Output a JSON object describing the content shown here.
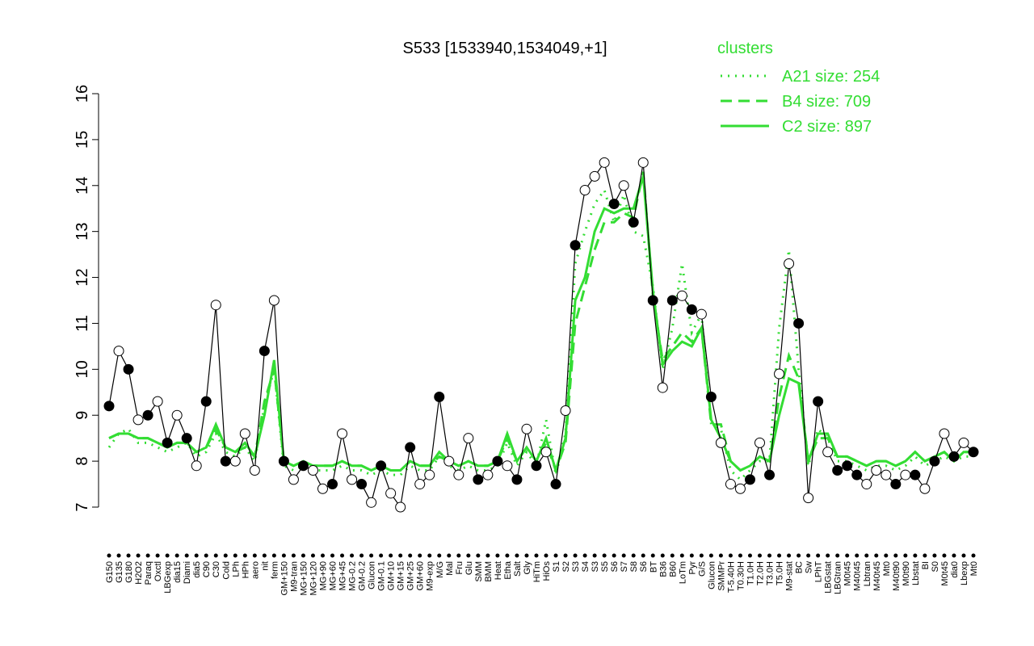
{
  "chart_data": {
    "type": "line",
    "title": "S533 [1533940,1534049,+1]",
    "ylim": [
      7,
      16
    ],
    "yticks": [
      7,
      8,
      9,
      10,
      11,
      12,
      13,
      14,
      15,
      16
    ],
    "legend_title": "clusters",
    "legend_position": "top-right",
    "categories": [
      "G150",
      "G135",
      "G180",
      "H2O2",
      "Paraq",
      "Oxctl",
      "LBGexp",
      "dia15",
      "Diami",
      "dia5",
      "C90",
      "C30",
      "Cold",
      "LPh",
      "HPh",
      "aero",
      "nit",
      "ferm",
      "GM+150",
      "M9-tran",
      "MG+150",
      "MG+120",
      "MG+90",
      "MG+60",
      "MG+45",
      "MG-0.2",
      "GM-0.2",
      "Glucon",
      "GM-0.1",
      "GM+10",
      "GM+15",
      "GM+25",
      "GM+60",
      "M9-exp",
      "M/G",
      "Mal",
      "Fru",
      "Glu",
      "SMM",
      "BMM",
      "Heat",
      "Etha",
      "Salt",
      "Gly",
      "HiTm",
      "HiOs",
      "S1",
      "S2",
      "S3",
      "S4",
      "S3",
      "S5",
      "S6",
      "S7",
      "S8",
      "S6",
      "BT",
      "B36",
      "B60",
      "LoTm",
      "Pyr",
      "G/S",
      "Glucon",
      "SMMPr",
      "T-5.40H",
      "T0.30H",
      "T1.0H",
      "T2.0H",
      "T3.0H",
      "T5.0H",
      "M9-stat",
      "BC",
      "Sw",
      "LPhT",
      "LBGstat",
      "LBGtran",
      "M0t45",
      "M40t45",
      "Lbtran",
      "M40t45",
      "Mt0",
      "M40t90",
      "M0t90",
      "Lbstat",
      "BI",
      "S0",
      "M0t45",
      "dia0",
      "Lbexp",
      "Mt0"
    ],
    "values": [
      9.2,
      10.4,
      10.0,
      8.9,
      9.0,
      9.3,
      8.4,
      9.0,
      8.5,
      7.9,
      9.3,
      11.4,
      8.0,
      8.0,
      8.6,
      7.8,
      10.4,
      11.5,
      8.0,
      7.6,
      7.9,
      7.8,
      7.4,
      7.5,
      8.6,
      7.6,
      7.5,
      7.1,
      7.9,
      7.3,
      7.0,
      8.3,
      7.5,
      7.7,
      9.4,
      8.0,
      7.7,
      8.5,
      7.6,
      7.7,
      8.0,
      7.9,
      7.6,
      8.7,
      7.9,
      8.2,
      7.5,
      9.1,
      12.7,
      13.9,
      14.2,
      14.5,
      13.6,
      14.0,
      13.2,
      14.5,
      11.5,
      9.6,
      11.5,
      11.6,
      11.3,
      11.2,
      9.4,
      8.4,
      7.5,
      7.4,
      7.6,
      8.4,
      7.7,
      9.9,
      12.3,
      11.0,
      7.2,
      9.3,
      8.2,
      7.8,
      7.9,
      7.7,
      7.5,
      7.8,
      7.7,
      7.5,
      7.7,
      7.7,
      7.4,
      8.0,
      8.6,
      8.1,
      8.4,
      8.2
    ],
    "marker_colors": [
      "#000000",
      "#ffffff",
      "#000000",
      "#ffffff",
      "#000000",
      "#ffffff",
      "#000000",
      "#ffffff",
      "#000000",
      "#ffffff",
      "#000000",
      "#ffffff",
      "#000000",
      "#ffffff",
      "#ffffff",
      "#ffffff",
      "#000000",
      "#ffffff",
      "#000000",
      "#ffffff",
      "#000000",
      "#ffffff",
      "#ffffff",
      "#000000",
      "#ffffff",
      "#ffffff",
      "#000000",
      "#ffffff",
      "#000000",
      "#ffffff",
      "#ffffff",
      "#000000",
      "#ffffff",
      "#ffffff",
      "#000000",
      "#ffffff",
      "#ffffff",
      "#ffffff",
      "#000000",
      "#ffffff",
      "#000000",
      "#ffffff",
      "#000000",
      "#ffffff",
      "#000000",
      "#ffffff",
      "#000000",
      "#ffffff",
      "#000000",
      "#ffffff",
      "#ffffff",
      "#ffffff",
      "#000000",
      "#ffffff",
      "#000000",
      "#ffffff",
      "#000000",
      "#ffffff",
      "#000000",
      "#ffffff",
      "#000000",
      "#ffffff",
      "#000000",
      "#ffffff",
      "#ffffff",
      "#ffffff",
      "#000000",
      "#ffffff",
      "#000000",
      "#ffffff",
      "#ffffff",
      "#000000",
      "#ffffff",
      "#000000",
      "#ffffff",
      "#000000",
      "#000000",
      "#000000",
      "#ffffff",
      "#ffffff",
      "#ffffff",
      "#000000",
      "#ffffff",
      "#000000",
      "#ffffff",
      "#000000",
      "#ffffff",
      "#000000",
      "#ffffff",
      "#000000"
    ],
    "series": [
      {
        "name": "A21 size: 254",
        "color": "#33dd33",
        "dash": "dotted",
        "values": [
          8.3,
          8.6,
          8.7,
          8.4,
          8.4,
          8.3,
          8.2,
          8.3,
          8.4,
          8.1,
          8.2,
          8.6,
          8.2,
          8.1,
          8.3,
          8.0,
          9.2,
          10.0,
          7.9,
          7.8,
          7.9,
          7.8,
          7.8,
          7.8,
          7.9,
          7.8,
          7.8,
          7.7,
          7.8,
          7.7,
          7.7,
          7.9,
          7.8,
          7.8,
          8.1,
          7.9,
          7.8,
          7.9,
          7.8,
          7.8,
          7.9,
          8.4,
          7.9,
          8.2,
          7.9,
          8.9,
          7.7,
          8.6,
          12.3,
          13.0,
          13.6,
          13.9,
          13.2,
          13.8,
          13.0,
          12.9,
          11.8,
          10.0,
          10.9,
          12.3,
          10.8,
          11.2,
          8.8,
          8.7,
          7.8,
          7.6,
          7.8,
          8.0,
          8.0,
          10.9,
          12.6,
          10.0,
          7.9,
          8.7,
          8.5,
          8.0,
          8.0,
          7.9,
          7.8,
          7.9,
          7.9,
          7.8,
          7.9,
          8.1,
          7.9,
          8.0,
          8.1,
          8.0,
          8.1,
          8.1
        ]
      },
      {
        "name": "B4 size: 709",
        "color": "#33dd33",
        "dash": "dashed",
        "values": [
          8.5,
          8.6,
          8.6,
          8.5,
          8.5,
          8.4,
          8.3,
          8.4,
          8.4,
          8.2,
          8.3,
          8.7,
          8.3,
          8.2,
          8.3,
          8.1,
          9.3,
          10.0,
          8.0,
          7.9,
          8.0,
          7.9,
          7.9,
          7.9,
          8.0,
          7.9,
          7.9,
          7.8,
          7.9,
          7.8,
          7.8,
          8.0,
          7.9,
          7.9,
          8.1,
          8.0,
          7.9,
          8.0,
          7.9,
          7.9,
          8.0,
          8.5,
          8.0,
          8.3,
          8.0,
          8.4,
          7.8,
          8.4,
          11.0,
          11.8,
          12.6,
          13.2,
          13.2,
          13.4,
          13.3,
          14.3,
          11.6,
          10.2,
          10.5,
          10.8,
          10.6,
          10.9,
          8.8,
          8.8,
          8.0,
          7.8,
          7.9,
          8.1,
          8.0,
          9.4,
          10.3,
          9.8,
          8.0,
          8.5,
          8.5,
          8.1,
          8.1,
          8.0,
          7.9,
          8.0,
          8.0,
          7.9,
          8.0,
          8.2,
          8.0,
          8.1,
          8.2,
          8.0,
          8.2,
          8.2
        ]
      },
      {
        "name": "C2 size: 897",
        "color": "#33dd33",
        "dash": "solid",
        "values": [
          8.5,
          8.6,
          8.6,
          8.5,
          8.5,
          8.4,
          8.3,
          8.4,
          8.4,
          8.2,
          8.3,
          8.8,
          8.3,
          8.2,
          8.4,
          8.1,
          9.0,
          10.2,
          8.0,
          7.9,
          8.0,
          7.9,
          7.9,
          7.9,
          8.0,
          7.9,
          7.9,
          7.8,
          7.9,
          7.8,
          7.8,
          8.0,
          7.9,
          7.9,
          8.2,
          8.0,
          7.9,
          8.0,
          7.9,
          7.9,
          8.0,
          8.6,
          8.0,
          8.3,
          8.0,
          8.5,
          7.8,
          8.5,
          11.5,
          12.0,
          13.0,
          13.5,
          13.4,
          13.5,
          13.5,
          14.2,
          11.7,
          10.1,
          10.4,
          10.6,
          10.5,
          10.9,
          8.9,
          8.5,
          8.0,
          7.8,
          7.9,
          8.1,
          8.0,
          9.0,
          9.8,
          9.7,
          8.0,
          8.6,
          8.6,
          8.1,
          8.1,
          8.0,
          7.9,
          8.0,
          8.0,
          7.9,
          8.0,
          8.2,
          8.0,
          8.1,
          8.2,
          8.0,
          8.2,
          8.2
        ]
      }
    ]
  }
}
